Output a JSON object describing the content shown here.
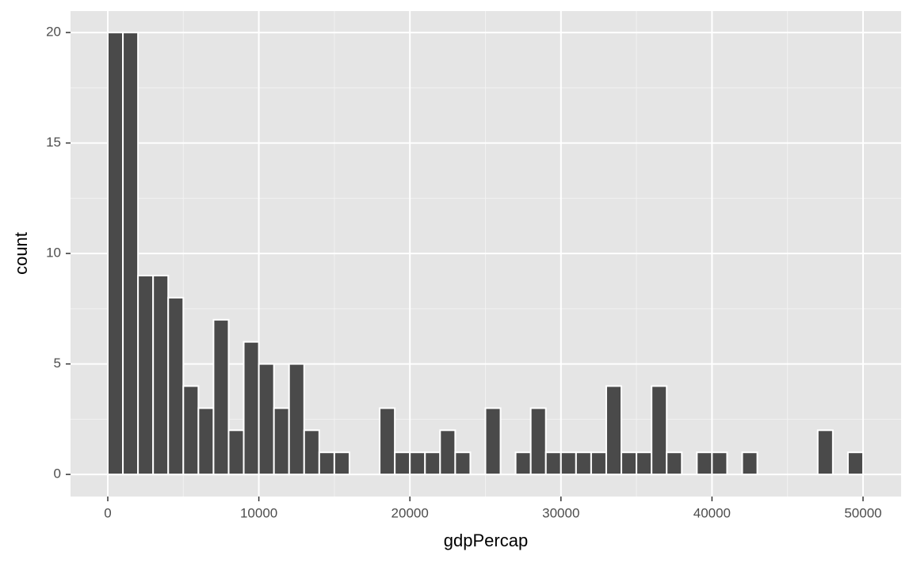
{
  "chart_data": {
    "type": "histogram",
    "x_label": "gdpPercap",
    "y_label": "count",
    "bins": [
      0,
      1000,
      2000,
      3000,
      4000,
      5000,
      6000,
      7000,
      8000,
      9000,
      10000,
      11000,
      12000,
      13000,
      14000,
      15000,
      16000,
      17000,
      18000,
      19000,
      20000,
      21000,
      22000,
      23000,
      24000,
      25000,
      26000,
      27000,
      28000,
      29000,
      30000,
      31000,
      32000,
      33000,
      34000,
      35000,
      36000,
      37000,
      38000,
      39000,
      40000,
      41000,
      42000,
      43000,
      44000,
      45000,
      46000,
      47000,
      48000,
      49000,
      50000
    ],
    "values": [
      20,
      20,
      9,
      9,
      8,
      4,
      3,
      7,
      2,
      6,
      5,
      3,
      5,
      2,
      1,
      1,
      0,
      0,
      3,
      1,
      1,
      1,
      2,
      1,
      0,
      3,
      0,
      1,
      3,
      1,
      1,
      1,
      1,
      4,
      1,
      1,
      4,
      1,
      0,
      1,
      1,
      0,
      1,
      0,
      0,
      0,
      0,
      2,
      0,
      1
    ],
    "color": "#4a4a4a",
    "xlim": [
      -2466,
      52520
    ],
    "ylim": [
      -1,
      20.97
    ],
    "xticks": [
      0,
      10000,
      20000,
      30000,
      40000,
      50000
    ],
    "yticks": [
      0,
      5,
      10,
      15,
      20
    ],
    "grid": true
  }
}
